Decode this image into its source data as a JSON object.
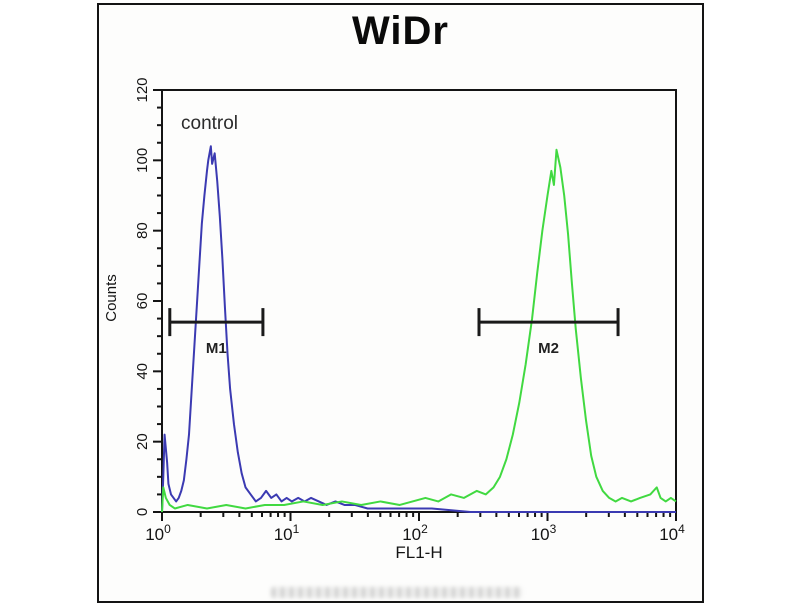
{
  "title": "WiDr",
  "annotation": "control",
  "chart_data": {
    "type": "line",
    "subtype": "flow-cytometry-histogram",
    "title": "WiDr",
    "xlabel": "FL1-H",
    "ylabel": "Counts",
    "x_scale": "log10",
    "xlim": [
      1,
      10000
    ],
    "ylim": [
      0,
      120
    ],
    "x_tick_exponents": [
      0,
      1,
      2,
      3,
      4
    ],
    "y_ticks": [
      0,
      20,
      40,
      60,
      80,
      100,
      120
    ],
    "y_minor_step": 5,
    "grid": false,
    "legend": "none",
    "frame_color": "#141414",
    "series": [
      {
        "label": "control",
        "color": "#3b3ab2",
        "points_log10x_count": [
          [
            0.0,
            0
          ],
          [
            0.01,
            10
          ],
          [
            0.02,
            22
          ],
          [
            0.04,
            14
          ],
          [
            0.05,
            8
          ],
          [
            0.07,
            5
          ],
          [
            0.09,
            4
          ],
          [
            0.11,
            3
          ],
          [
            0.13,
            4
          ],
          [
            0.15,
            6
          ],
          [
            0.17,
            9
          ],
          [
            0.19,
            15
          ],
          [
            0.21,
            22
          ],
          [
            0.23,
            34
          ],
          [
            0.25,
            46
          ],
          [
            0.27,
            58
          ],
          [
            0.29,
            70
          ],
          [
            0.31,
            82
          ],
          [
            0.33,
            90
          ],
          [
            0.35,
            97
          ],
          [
            0.36,
            100
          ],
          [
            0.38,
            104
          ],
          [
            0.39,
            99
          ],
          [
            0.41,
            102
          ],
          [
            0.43,
            94
          ],
          [
            0.45,
            84
          ],
          [
            0.47,
            72
          ],
          [
            0.49,
            58
          ],
          [
            0.51,
            45
          ],
          [
            0.53,
            35
          ],
          [
            0.56,
            25
          ],
          [
            0.59,
            17
          ],
          [
            0.62,
            11
          ],
          [
            0.65,
            7
          ],
          [
            0.69,
            5
          ],
          [
            0.73,
            3
          ],
          [
            0.77,
            4
          ],
          [
            0.81,
            6
          ],
          [
            0.85,
            4
          ],
          [
            0.89,
            5
          ],
          [
            0.93,
            3
          ],
          [
            0.97,
            4
          ],
          [
            1.01,
            3
          ],
          [
            1.06,
            4
          ],
          [
            1.11,
            3
          ],
          [
            1.16,
            4
          ],
          [
            1.22,
            3
          ],
          [
            1.28,
            2
          ],
          [
            1.35,
            3
          ],
          [
            1.42,
            2
          ],
          [
            1.5,
            2
          ],
          [
            1.6,
            1
          ],
          [
            1.75,
            1
          ],
          [
            1.9,
            1
          ],
          [
            2.1,
            1
          ],
          [
            2.4,
            0
          ],
          [
            4.0,
            0
          ]
        ]
      },
      {
        "label": "",
        "color": "#41d941",
        "points_log10x_count": [
          [
            0.0,
            0
          ],
          [
            0.01,
            7
          ],
          [
            0.03,
            4
          ],
          [
            0.06,
            2
          ],
          [
            0.1,
            1
          ],
          [
            0.2,
            2
          ],
          [
            0.35,
            1
          ],
          [
            0.5,
            2
          ],
          [
            0.65,
            1
          ],
          [
            0.8,
            2
          ],
          [
            0.95,
            2
          ],
          [
            1.1,
            3
          ],
          [
            1.25,
            2
          ],
          [
            1.4,
            3
          ],
          [
            1.55,
            2
          ],
          [
            1.7,
            3
          ],
          [
            1.85,
            2
          ],
          [
            1.95,
            3
          ],
          [
            2.05,
            4
          ],
          [
            2.15,
            3
          ],
          [
            2.25,
            5
          ],
          [
            2.35,
            4
          ],
          [
            2.45,
            6
          ],
          [
            2.52,
            5
          ],
          [
            2.58,
            7
          ],
          [
            2.63,
            10
          ],
          [
            2.68,
            15
          ],
          [
            2.73,
            22
          ],
          [
            2.78,
            31
          ],
          [
            2.83,
            42
          ],
          [
            2.88,
            55
          ],
          [
            2.92,
            68
          ],
          [
            2.96,
            80
          ],
          [
            3.0,
            90
          ],
          [
            3.03,
            97
          ],
          [
            3.05,
            93
          ],
          [
            3.07,
            103
          ],
          [
            3.1,
            98
          ],
          [
            3.13,
            90
          ],
          [
            3.16,
            79
          ],
          [
            3.19,
            65
          ],
          [
            3.22,
            52
          ],
          [
            3.26,
            38
          ],
          [
            3.3,
            26
          ],
          [
            3.34,
            16
          ],
          [
            3.38,
            10
          ],
          [
            3.43,
            6
          ],
          [
            3.48,
            4
          ],
          [
            3.53,
            3
          ],
          [
            3.58,
            4
          ],
          [
            3.65,
            3
          ],
          [
            3.72,
            4
          ],
          [
            3.8,
            5
          ],
          [
            3.85,
            7
          ],
          [
            3.88,
            4
          ],
          [
            3.92,
            3
          ],
          [
            3.96,
            4
          ],
          [
            4.0,
            3
          ]
        ]
      }
    ],
    "markers": [
      {
        "label": "M1",
        "x_from": 1.15,
        "x_to": 6.1,
        "count_level": 54
      },
      {
        "label": "M2",
        "x_from": 293,
        "x_to": 3540,
        "count_level": 54
      }
    ]
  }
}
